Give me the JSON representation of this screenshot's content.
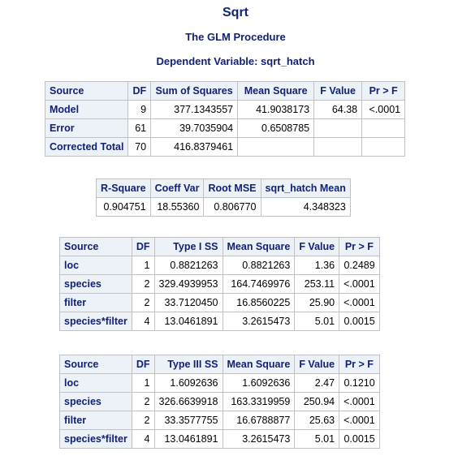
{
  "titles": {
    "main": "Sqrt",
    "procedure": "The GLM Procedure",
    "dependent": "Dependent Variable: sqrt_hatch"
  },
  "anova": {
    "headers": [
      "Source",
      "DF",
      "Sum of Squares",
      "Mean Square",
      "F Value",
      "Pr > F"
    ],
    "rows": [
      [
        "Model",
        "9",
        "377.1343557",
        "41.9038173",
        "64.38",
        "<.0001"
      ],
      [
        "Error",
        "61",
        "39.7035904",
        "0.6508785",
        "",
        ""
      ],
      [
        "Corrected Total",
        "70",
        "416.8379461",
        "",
        "",
        ""
      ]
    ]
  },
  "fit": {
    "headers": [
      "R-Square",
      "Coeff Var",
      "Root MSE",
      "sqrt_hatch Mean"
    ],
    "row": [
      "0.904751",
      "18.55360",
      "0.806770",
      "4.348323"
    ]
  },
  "type1": {
    "headers": [
      "Source",
      "DF",
      "Type I SS",
      "Mean Square",
      "F Value",
      "Pr > F"
    ],
    "rows": [
      [
        "loc",
        "1",
        "0.8821263",
        "0.8821263",
        "1.36",
        "0.2489"
      ],
      [
        "species",
        "2",
        "329.4939953",
        "164.7469976",
        "253.11",
        "<.0001"
      ],
      [
        "filter",
        "2",
        "33.7120450",
        "16.8560225",
        "25.90",
        "<.0001"
      ],
      [
        "species*filter",
        "4",
        "13.0461891",
        "3.2615473",
        "5.01",
        "0.0015"
      ]
    ]
  },
  "type3": {
    "headers": [
      "Source",
      "DF",
      "Type III SS",
      "Mean Square",
      "F Value",
      "Pr > F"
    ],
    "rows": [
      [
        "loc",
        "1",
        "1.6092636",
        "1.6092636",
        "2.47",
        "0.1210"
      ],
      [
        "species",
        "2",
        "326.6639918",
        "163.3319959",
        "250.94",
        "<.0001"
      ],
      [
        "filter",
        "2",
        "33.3577755",
        "16.6788877",
        "25.63",
        "<.0001"
      ],
      [
        "species*filter",
        "4",
        "13.0461891",
        "3.2615473",
        "5.01",
        "0.0015"
      ]
    ]
  }
}
